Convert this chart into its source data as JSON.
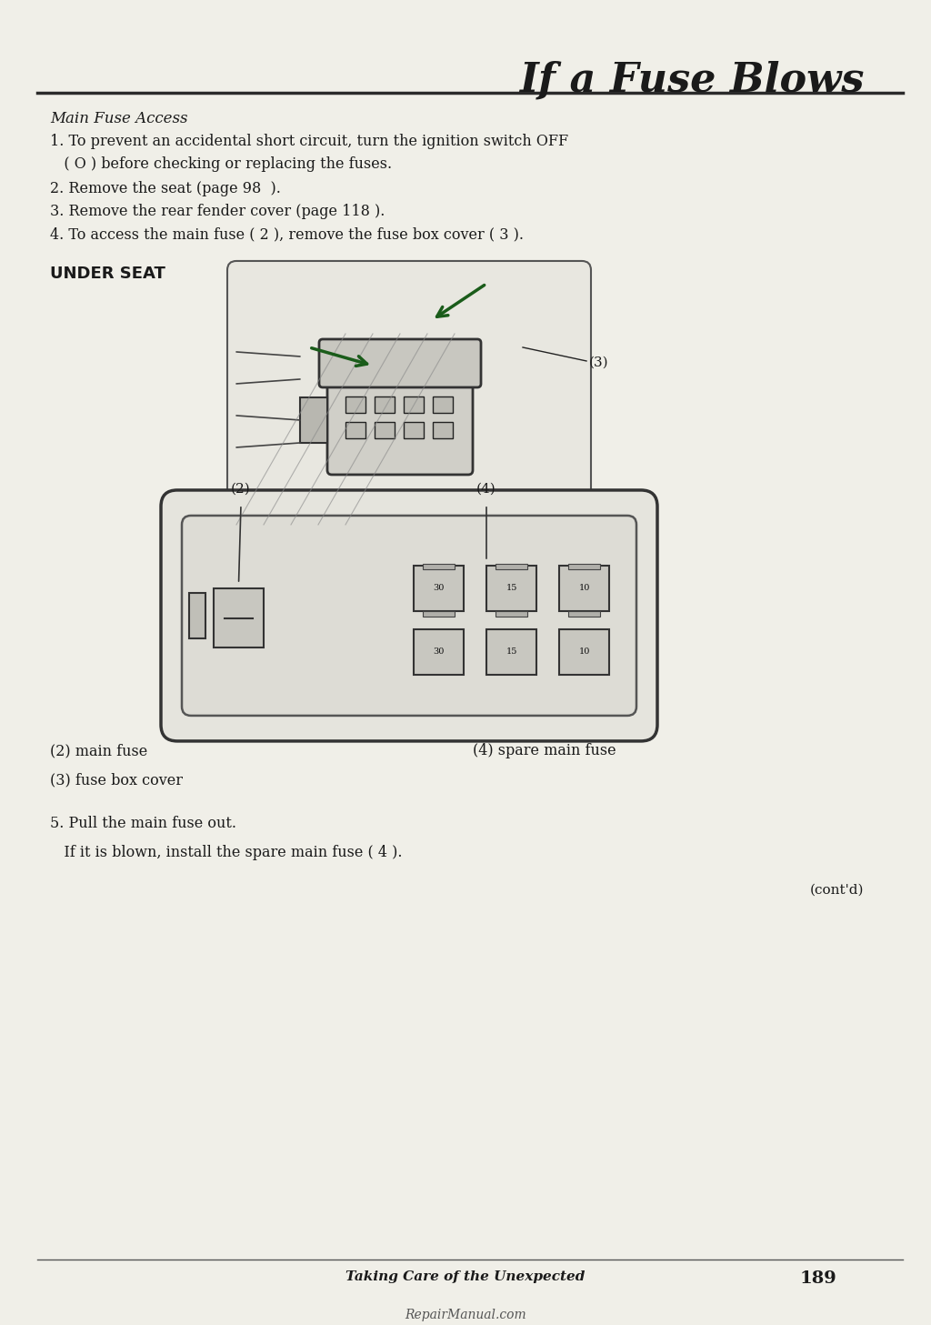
{
  "title": "If a Fuse Blows",
  "bg_color": "#f5f4f0",
  "text_color": "#1a1a1a",
  "page_bg": "#f0efe8",
  "subtitle": "Main Fuse Access",
  "steps": [
    "1. To prevent an accidental short circuit, turn the ignition switch OFF\n   ( O ) before checking or replacing the fuses.",
    "2. Remove the seat (page 98  ).",
    "3. Remove the rear fender cover (page 118 ).",
    "4. To access the main fuse ( 2 ), remove the fuse box cover ( 3 )."
  ],
  "under_seat_label": "UNDER SEAT",
  "label_3": "(3)",
  "label_2": "(2)",
  "label_4": "(4)",
  "legend_2": "(2) main fuse",
  "legend_3": "(3) fuse box cover",
  "legend_4": "(4) spare main fuse",
  "step5_line1": "5. Pull the main fuse out.",
  "step5_line2": "   If it is blown, install the spare main fuse ( 4 ).",
  "contd": "(cont'd)",
  "footer_italic": "Taking Care of the Unexpected",
  "footer_page": "189",
  "footer_url": "RepairManual.com"
}
